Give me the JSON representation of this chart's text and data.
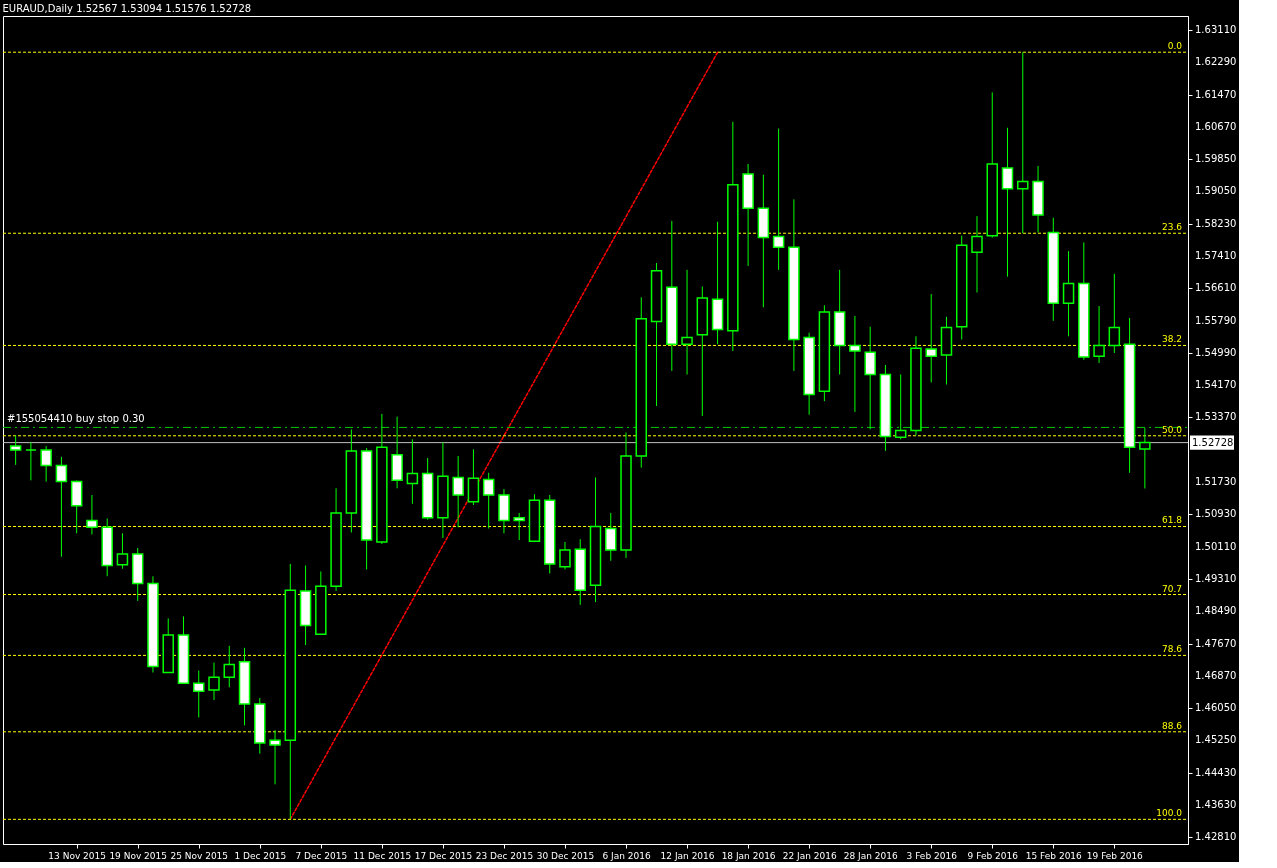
{
  "chart_data": {
    "type": "candlestick",
    "title": "EURAUD,Daily  1.52567 1.53094 1.51576 1.52728",
    "categories": [
      null,
      null,
      null,
      null,
      "13 Nov 2015",
      null,
      null,
      null,
      "19 Nov 2015",
      null,
      null,
      null,
      "25 Nov 2015",
      null,
      null,
      null,
      "1 Dec 2015",
      null,
      null,
      null,
      "7 Dec 2015",
      null,
      null,
      null,
      "11 Dec 2015",
      null,
      null,
      null,
      "17 Dec 2015",
      null,
      null,
      null,
      "23 Dec 2015",
      null,
      null,
      null,
      "30 Dec 2015",
      null,
      null,
      null,
      "6 Jan 2016",
      null,
      null,
      null,
      "12 Jan 2016",
      null,
      null,
      null,
      "18 Jan 2016",
      null,
      null,
      null,
      "22 Jan 2016",
      null,
      null,
      null,
      "28 Jan 2016",
      null,
      null,
      null,
      "3 Feb 2016",
      null,
      null,
      null,
      "9 Feb 2016",
      null,
      null,
      null,
      "15 Feb 2016",
      null,
      null,
      null,
      "19 Feb 2016",
      null,
      null
    ],
    "series": [
      {
        "color": "#00ff00",
        "ohlc": [
          [
            1.5264,
            1.5291,
            1.5217,
            1.5254
          ],
          [
            1.5254,
            1.5274,
            1.5178,
            1.5254
          ],
          [
            1.5254,
            1.5264,
            1.5175,
            1.5215
          ],
          [
            1.5215,
            1.5237,
            1.4986,
            1.5175
          ],
          [
            1.5175,
            1.5178,
            1.5045,
            1.5114
          ],
          [
            1.5077,
            1.5141,
            1.5042,
            1.506
          ],
          [
            1.506,
            1.5082,
            1.4937,
            1.4964
          ],
          [
            1.4966,
            1.5045,
            1.4956,
            1.4993
          ],
          [
            1.4993,
            1.5008,
            1.4875,
            1.4919
          ],
          [
            1.4919,
            1.4937,
            1.4695,
            1.471
          ],
          [
            1.4695,
            1.4831,
            1.4695,
            1.4789
          ],
          [
            1.4789,
            1.4836,
            1.4666,
            1.4668
          ],
          [
            1.4668,
            1.47,
            1.4582,
            1.4648
          ],
          [
            1.4651,
            1.472,
            1.4626,
            1.4683
          ],
          [
            1.4683,
            1.4762,
            1.4658,
            1.4715
          ],
          [
            1.4722,
            1.4757,
            1.4562,
            1.4616
          ],
          [
            1.4616,
            1.4631,
            1.4491,
            1.4518
          ],
          [
            1.4525,
            1.455,
            1.4414,
            1.4513
          ],
          [
            1.4525,
            1.4968,
            1.4326,
            1.4902
          ],
          [
            1.49,
            1.4964,
            1.4764,
            1.4813
          ],
          [
            1.4791,
            1.4949,
            1.4791,
            1.4912
          ],
          [
            1.4912,
            1.5158,
            1.49,
            1.5096
          ],
          [
            1.5096,
            1.5306,
            1.5047,
            1.5252
          ],
          [
            1.5252,
            1.5259,
            1.4954,
            1.5028
          ],
          [
            1.5023,
            1.5345,
            1.5018,
            1.5261
          ],
          [
            1.5242,
            1.5338,
            1.5158,
            1.5178
          ],
          [
            1.517,
            1.5281,
            1.5119,
            1.5195
          ],
          [
            1.5195,
            1.5234,
            1.5079,
            1.5084
          ],
          [
            1.5084,
            1.5274,
            1.5033,
            1.5188
          ],
          [
            1.5185,
            1.5239,
            1.506,
            1.5141
          ],
          [
            1.5124,
            1.5256,
            1.5116,
            1.5183
          ],
          [
            1.518,
            1.5197,
            1.5057,
            1.5141
          ],
          [
            1.5141,
            1.5156,
            1.5045,
            1.5077
          ],
          [
            1.5084,
            1.5096,
            1.5028,
            1.5077
          ],
          [
            1.5025,
            1.5143,
            1.5023,
            1.5128
          ],
          [
            1.5128,
            1.5141,
            1.4944,
            1.4968
          ],
          [
            1.4961,
            1.5023,
            1.4954,
            1.5003
          ],
          [
            1.5005,
            1.503,
            1.4865,
            1.4902
          ],
          [
            1.4914,
            1.5185,
            1.4872,
            1.5062
          ],
          [
            1.5057,
            1.5096,
            1.4976,
            1.5003
          ],
          [
            1.5003,
            1.5298,
            1.4983,
            1.5239
          ],
          [
            1.5239,
            1.5638,
            1.521,
            1.5584
          ],
          [
            1.5577,
            1.5724,
            1.5365,
            1.5705
          ],
          [
            1.5663,
            1.583,
            1.5453,
            1.552
          ],
          [
            1.552,
            1.5707,
            1.5444,
            1.5537
          ],
          [
            1.5544,
            1.5665,
            1.534,
            1.5636
          ],
          [
            1.5633,
            1.5828,
            1.552,
            1.5557
          ],
          [
            1.5554,
            1.6079,
            1.5503,
            1.5921
          ],
          [
            1.5948,
            1.5973,
            1.5717,
            1.5862
          ],
          [
            1.5862,
            1.5946,
            1.5613,
            1.5788
          ],
          [
            1.5791,
            1.6062,
            1.5707,
            1.5764
          ],
          [
            1.5764,
            1.5884,
            1.5453,
            1.5532
          ],
          [
            1.5537,
            1.5549,
            1.5343,
            1.5394
          ],
          [
            1.5402,
            1.5618,
            1.5377,
            1.5601
          ],
          [
            1.5601,
            1.5707,
            1.5444,
            1.5517
          ],
          [
            1.5517,
            1.5591,
            1.535,
            1.5503
          ],
          [
            1.55,
            1.5564,
            1.5306,
            1.5444
          ],
          [
            1.5444,
            1.5468,
            1.5252,
            1.5288
          ],
          [
            1.5286,
            1.5444,
            1.5281,
            1.5303
          ],
          [
            1.5303,
            1.554,
            1.5291,
            1.551
          ],
          [
            1.5508,
            1.5646,
            1.5424,
            1.549
          ],
          [
            1.5493,
            1.5589,
            1.5419,
            1.5562
          ],
          [
            1.5564,
            1.5793,
            1.5532,
            1.5769
          ],
          [
            1.5751,
            1.5842,
            1.565,
            1.5791
          ],
          [
            1.5793,
            1.6153,
            1.5788,
            1.5973
          ],
          [
            1.5963,
            1.6064,
            1.569,
            1.5911
          ],
          [
            1.5911,
            1.6254,
            1.5799,
            1.5929
          ],
          [
            1.5929,
            1.5968,
            1.5801,
            1.5845
          ],
          [
            1.5801,
            1.5838,
            1.5579,
            1.5623
          ],
          [
            1.5623,
            1.5754,
            1.554,
            1.5673
          ],
          [
            1.5673,
            1.5776,
            1.5481,
            1.5488
          ],
          [
            1.549,
            1.5616,
            1.5473,
            1.5517
          ],
          [
            1.5517,
            1.5697,
            1.5498,
            1.5562
          ],
          [
            1.552,
            1.5586,
            1.5197,
            1.5261
          ],
          [
            1.52567,
            1.53094,
            1.51576,
            1.52728
          ]
        ]
      },
      {
        "type": "line",
        "color": "#ff0000",
        "line_style": "dotted",
        "values": [
          null,
          null,
          null,
          null,
          null,
          null,
          null,
          null,
          null,
          null,
          null,
          null,
          null,
          null,
          null,
          null,
          null,
          null,
          1.4326,
          null,
          null,
          null,
          null,
          null,
          null,
          null,
          null,
          null,
          null,
          null,
          null,
          null,
          null,
          null,
          null,
          null,
          null,
          null,
          null,
          null,
          null,
          null,
          null,
          null,
          null,
          null,
          1.6254,
          null,
          null,
          null,
          null,
          null,
          null,
          null,
          null,
          null,
          null,
          null,
          null,
          null,
          null,
          null,
          null,
          null,
          null,
          null,
          null,
          null,
          null,
          null,
          null,
          null,
          null,
          null,
          null
        ]
      }
    ],
    "ylim": [
      1.4264,
      1.6345
    ],
    "yticks": [
      {
        "value": 1.6311,
        "label": "1.63110"
      },
      {
        "value": 1.6229,
        "label": "1.62290"
      },
      {
        "value": 1.6147,
        "label": "1.61470"
      },
      {
        "value": 1.6067,
        "label": "1.60670"
      },
      {
        "value": 1.5985,
        "label": "1.59850"
      },
      {
        "value": 1.5905,
        "label": "1.59050"
      },
      {
        "value": 1.5823,
        "label": "1.58230"
      },
      {
        "value": 1.5741,
        "label": "1.57410"
      },
      {
        "value": 1.5661,
        "label": "1.56610"
      },
      {
        "value": 1.5579,
        "label": "1.55790"
      },
      {
        "value": 1.5499,
        "label": "1.54990"
      },
      {
        "value": 1.5417,
        "label": "1.54170"
      },
      {
        "value": 1.5337,
        "label": "1.53370"
      },
      {
        "value": 1.5173,
        "label": "1.51730"
      },
      {
        "value": 1.5093,
        "label": "1.50930"
      },
      {
        "value": 1.5011,
        "label": "1.50110"
      },
      {
        "value": 1.4931,
        "label": "1.49310"
      },
      {
        "value": 1.4849,
        "label": "1.48490"
      },
      {
        "value": 1.4767,
        "label": "1.47670"
      },
      {
        "value": 1.4687,
        "label": "1.46870"
      },
      {
        "value": 1.4605,
        "label": "1.46050"
      },
      {
        "value": 1.4525,
        "label": "1.45250"
      },
      {
        "value": 1.4443,
        "label": "1.44430"
      },
      {
        "value": 1.4363,
        "label": "1.43630"
      },
      {
        "value": 1.4281,
        "label": "1.42810"
      }
    ],
    "ref_lines": [
      {
        "axis": "y",
        "value": 1.6254,
        "color": "#ffff00",
        "line_style": "dotted"
      },
      {
        "axis": "y",
        "value": 1.5799,
        "color": "#ffff00",
        "line_style": "dotted"
      },
      {
        "axis": "y",
        "value": 1.5517,
        "color": "#ffff00",
        "line_style": "dotted"
      },
      {
        "axis": "y",
        "value": 1.529,
        "color": "#ffff00",
        "line_style": "dotted"
      },
      {
        "axis": "y",
        "value": 1.5062,
        "color": "#ffff00",
        "line_style": "dotted"
      },
      {
        "axis": "y",
        "value": 1.4891,
        "color": "#ffff00",
        "line_style": "dotted"
      },
      {
        "axis": "y",
        "value": 1.4738,
        "color": "#ffff00",
        "line_style": "dotted"
      },
      {
        "axis": "y",
        "value": 1.4546,
        "color": "#ffff00",
        "line_style": "dotted"
      },
      {
        "axis": "y",
        "value": 1.4326,
        "color": "#ffff00",
        "line_style": "dotted"
      },
      {
        "axis": "y",
        "value": 1.5311,
        "label": "#155054410 buy stop 0.30",
        "color": "#00c800",
        "line_style": "dashed"
      },
      {
        "axis": "y",
        "value": 1.52728,
        "label": "1.52728",
        "color": "#c0c0c0",
        "line_style": "solid"
      }
    ],
    "annotations": [
      {
        "text": "0.0",
        "y": 1.6254
      },
      {
        "text": "23.6",
        "y": 1.5799
      },
      {
        "text": "38.2",
        "y": 1.5517
      },
      {
        "text": "50.0",
        "y": 1.529
      },
      {
        "text": "61.8",
        "y": 1.5062
      },
      {
        "text": "70.7",
        "y": 1.4891
      },
      {
        "text": "78.6",
        "y": 1.4738
      },
      {
        "text": "88.6",
        "y": 1.4546
      },
      {
        "text": "100.0",
        "y": 1.4326
      }
    ],
    "grid": false
  }
}
